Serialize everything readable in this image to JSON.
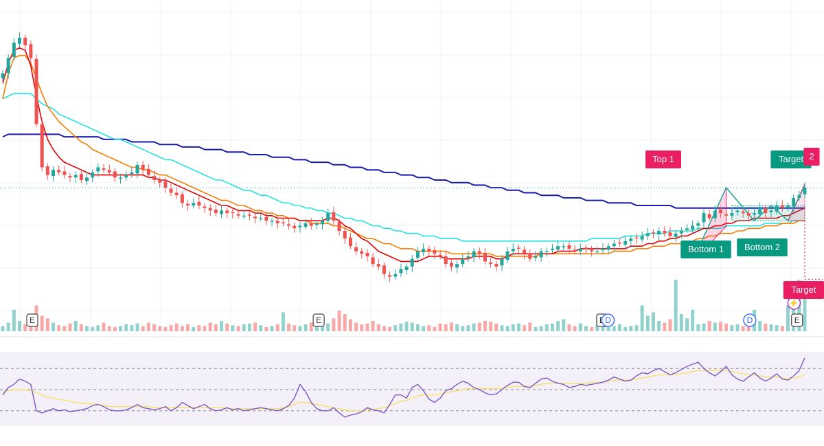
{
  "chart_data": {
    "type": "candlestick",
    "grid": true,
    "colors": {
      "up": "#26a69a",
      "down": "#ef5350",
      "ma_fast": "#e00000",
      "ma_mid": "#f57c00",
      "ma_slow": "#26e0e0",
      "ma_long": "#1a1aa8",
      "rsi": "#7e57c2",
      "rsi_ma": "#f5e16b",
      "label_pink": "#e91e63",
      "label_teal": "#089981"
    },
    "price_range": [
      0,
      100
    ],
    "price_close": [
      82,
      88,
      94,
      96,
      93,
      88,
      62,
      45,
      42,
      44,
      43,
      42,
      41,
      42,
      40,
      41,
      43,
      45,
      44,
      43,
      41,
      41,
      42,
      43,
      46,
      44,
      42,
      40,
      39,
      37,
      35,
      34,
      31,
      30,
      31,
      30,
      29,
      28,
      27,
      28,
      27,
      27,
      26,
      26,
      26,
      25,
      25,
      24,
      24,
      23,
      23,
      22,
      21,
      22,
      23,
      22,
      23,
      24,
      27,
      24,
      20,
      17,
      14,
      12,
      11,
      10,
      7,
      6,
      3,
      2,
      3,
      5,
      6,
      9,
      12,
      13,
      12,
      11,
      10,
      7,
      6,
      7,
      9,
      10,
      12,
      11,
      8,
      7,
      6,
      9,
      12,
      13,
      13,
      11,
      9,
      10,
      12,
      12,
      13,
      14,
      14,
      13,
      12,
      13,
      13,
      12,
      12,
      13,
      14,
      15,
      15,
      16,
      17,
      17,
      18,
      19,
      19,
      20,
      19,
      18,
      19,
      20,
      21,
      22,
      23,
      27,
      25,
      28,
      27,
      26,
      27,
      28,
      27,
      26,
      27,
      29,
      27,
      28,
      30,
      29,
      30,
      33,
      34,
      37
    ],
    "ma_fast": [
      78,
      86,
      91,
      92,
      91,
      85,
      73,
      63,
      56,
      52,
      49,
      47,
      46,
      45,
      44,
      43,
      42,
      42,
      42,
      42,
      42,
      42,
      42,
      42,
      42,
      42,
      41,
      41,
      40,
      40,
      39,
      38,
      37,
      36,
      35,
      34,
      33,
      32,
      31,
      30,
      30,
      29,
      28,
      28,
      28,
      27,
      27,
      26,
      26,
      25,
      25,
      25,
      25,
      24,
      24,
      24,
      24,
      24,
      25,
      25,
      24,
      22,
      21,
      19,
      17,
      16,
      14,
      12,
      11,
      10,
      9,
      8,
      8,
      8,
      8,
      9,
      10,
      10,
      10,
      9,
      9,
      9,
      9,
      9,
      10,
      10,
      10,
      10,
      9,
      9,
      10,
      11,
      11,
      11,
      11,
      11,
      11,
      11,
      11,
      12,
      12,
      12,
      12,
      13,
      13,
      13,
      13,
      13,
      13,
      13,
      13,
      13,
      14,
      14,
      14,
      15,
      15,
      16,
      16,
      17,
      17,
      18,
      18,
      19,
      20,
      21,
      21,
      22,
      22,
      23,
      23,
      24,
      24,
      24,
      25,
      25,
      25,
      25,
      25,
      26,
      26,
      27,
      28,
      29
    ],
    "ma_mid": [
      72,
      82,
      88,
      89,
      89,
      86,
      80,
      74,
      69,
      66,
      63,
      61,
      59,
      57,
      55,
      54,
      52,
      51,
      50,
      49,
      48,
      47,
      46,
      45,
      45,
      44,
      44,
      43,
      42,
      42,
      41,
      40,
      39,
      38,
      37,
      36,
      35,
      34,
      33,
      32,
      32,
      31,
      30,
      30,
      29,
      28,
      28,
      27,
      27,
      26,
      26,
      25,
      25,
      24,
      24,
      23,
      23,
      23,
      23,
      22,
      22,
      21,
      20,
      19,
      18,
      17,
      17,
      16,
      15,
      15,
      14,
      13,
      13,
      13,
      12,
      12,
      12,
      12,
      12,
      12,
      11,
      11,
      11,
      11,
      11,
      11,
      11,
      11,
      10,
      10,
      10,
      10,
      10,
      10,
      10,
      10,
      11,
      11,
      11,
      11,
      11,
      11,
      11,
      11,
      11,
      11,
      11,
      11,
      11,
      12,
      12,
      12,
      12,
      13,
      13,
      13,
      14,
      14,
      14,
      15,
      15,
      15,
      16,
      16,
      17,
      17,
      18,
      18,
      19,
      19,
      19,
      20,
      20,
      21,
      21,
      21,
      22,
      22,
      22,
      23,
      23,
      23,
      24,
      24
    ],
    "ma_slow": [
      72,
      73,
      74,
      74,
      74,
      74,
      72,
      70,
      69,
      68,
      66,
      65,
      64,
      63,
      62,
      61,
      60,
      59,
      58,
      57,
      56,
      56,
      55,
      54,
      53,
      52,
      51,
      50,
      49,
      48,
      48,
      47,
      46,
      45,
      44,
      43,
      42,
      41,
      40,
      40,
      39,
      38,
      37,
      36,
      36,
      35,
      34,
      34,
      33,
      32,
      31,
      31,
      30,
      30,
      29,
      29,
      28,
      28,
      27,
      27,
      26,
      25,
      25,
      24,
      24,
      23,
      22,
      22,
      21,
      21,
      20,
      20,
      19,
      19,
      19,
      18,
      18,
      18,
      17,
      17,
      17,
      17,
      16,
      16,
      16,
      16,
      16,
      16,
      16,
      16,
      16,
      16,
      16,
      16,
      16,
      16,
      16,
      16,
      16,
      16,
      16,
      16,
      16,
      16,
      16,
      17,
      17,
      17,
      17,
      17,
      17,
      18,
      18,
      18,
      18,
      19,
      19,
      19,
      19,
      20,
      20,
      20,
      20,
      20,
      21,
      21,
      21,
      21,
      21,
      22,
      22,
      22,
      22,
      22,
      22,
      22,
      23,
      23,
      23,
      23,
      23,
      24,
      24,
      24
    ],
    "ma_long": [
      57,
      58,
      58,
      58,
      58,
      58,
      58,
      58,
      58,
      58,
      58,
      57,
      57,
      57,
      57,
      57,
      57,
      57,
      56,
      56,
      56,
      56,
      56,
      55,
      55,
      55,
      55,
      55,
      54,
      54,
      54,
      54,
      53,
      53,
      53,
      53,
      52,
      52,
      52,
      52,
      51,
      51,
      51,
      51,
      50,
      50,
      50,
      50,
      49,
      49,
      49,
      49,
      48,
      48,
      48,
      47,
      47,
      47,
      47,
      46,
      46,
      46,
      45,
      45,
      45,
      44,
      44,
      44,
      43,
      43,
      43,
      42,
      42,
      42,
      41,
      41,
      41,
      40,
      40,
      40,
      39,
      39,
      39,
      39,
      38,
      38,
      38,
      37,
      37,
      37,
      36,
      36,
      36,
      35,
      35,
      35,
      34,
      34,
      34,
      34,
      33,
      33,
      33,
      33,
      32,
      32,
      32,
      32,
      31,
      31,
      31,
      31,
      31,
      30,
      30,
      30,
      30,
      30,
      30,
      30,
      29,
      29,
      29,
      29,
      29,
      29,
      29,
      29,
      29,
      29,
      29,
      29,
      29,
      29,
      29,
      29,
      29,
      29,
      29,
      29,
      29,
      29,
      29,
      29
    ],
    "rsi": [
      45,
      52,
      55,
      60,
      58,
      55,
      30,
      28,
      30,
      32,
      30,
      31,
      29,
      30,
      31,
      32,
      35,
      36,
      34,
      31,
      30,
      30,
      31,
      33,
      36,
      33,
      32,
      31,
      32,
      34,
      30,
      33,
      38,
      35,
      32,
      34,
      36,
      32,
      30,
      31,
      33,
      31,
      32,
      30,
      31,
      32,
      33,
      32,
      31,
      30,
      32,
      35,
      42,
      55,
      48,
      38,
      32,
      30,
      30,
      33,
      28,
      24,
      26,
      27,
      29,
      33,
      31,
      30,
      28,
      36,
      45,
      45,
      42,
      52,
      55,
      49,
      41,
      38,
      42,
      49,
      51,
      55,
      58,
      56,
      52,
      50,
      47,
      45,
      46,
      50,
      54,
      57,
      57,
      53,
      52,
      56,
      60,
      61,
      58,
      56,
      55,
      52,
      53,
      55,
      54,
      55,
      56,
      57,
      59,
      62,
      60,
      58,
      59,
      63,
      66,
      65,
      68,
      70,
      67,
      64,
      66,
      69,
      72,
      74,
      76,
      70,
      66,
      63,
      67,
      72,
      64,
      60,
      58,
      62,
      66,
      61,
      58,
      61,
      65,
      60,
      59,
      63,
      68,
      80
    ],
    "rsi_ma": [
      48,
      49,
      50,
      50,
      50,
      49,
      47,
      45,
      43,
      42,
      41,
      40,
      39,
      38,
      37,
      37,
      37,
      36,
      35,
      34,
      34,
      34,
      34,
      34,
      34,
      34,
      34,
      33,
      33,
      33,
      33,
      33,
      33,
      33,
      33,
      33,
      33,
      33,
      33,
      33,
      32,
      32,
      32,
      32,
      32,
      32,
      32,
      32,
      32,
      32,
      33,
      34,
      36,
      38,
      38,
      37,
      36,
      35,
      34,
      33,
      32,
      31,
      30,
      30,
      30,
      31,
      31,
      32,
      33,
      35,
      37,
      39,
      40,
      42,
      44,
      45,
      45,
      45,
      46,
      47,
      48,
      49,
      50,
      51,
      51,
      51,
      51,
      51,
      51,
      51,
      52,
      53,
      53,
      53,
      53,
      54,
      55,
      56,
      56,
      56,
      56,
      56,
      56,
      56,
      56,
      57,
      57,
      57,
      58,
      59,
      59,
      59,
      59,
      60,
      61,
      62,
      63,
      64,
      64,
      64,
      64,
      65,
      66,
      67,
      68,
      68,
      68,
      68,
      68,
      68,
      67,
      66,
      65,
      64,
      64,
      63,
      62,
      62,
      62,
      61,
      60,
      61,
      62,
      64
    ],
    "volume": [
      6,
      10,
      25,
      12,
      8,
      6,
      30,
      18,
      15,
      10,
      7,
      6,
      9,
      12,
      8,
      6,
      5,
      7,
      10,
      6,
      5,
      6,
      8,
      7,
      9,
      6,
      10,
      8,
      6,
      5,
      7,
      9,
      6,
      8,
      5,
      7,
      6,
      10,
      8,
      12,
      9,
      7,
      6,
      8,
      9,
      10,
      7,
      5,
      6,
      8,
      22,
      9,
      7,
      6,
      8,
      10,
      12,
      7,
      9,
      15,
      24,
      20,
      14,
      10,
      8,
      9,
      12,
      8,
      6,
      5,
      7,
      9,
      11,
      10,
      8,
      6,
      7,
      5,
      9,
      8,
      10,
      8,
      6,
      7,
      9,
      10,
      12,
      11,
      9,
      7,
      6,
      8,
      9,
      7,
      10,
      5,
      6,
      8,
      9,
      12,
      14,
      8,
      6,
      9,
      6,
      5,
      7,
      9,
      5,
      6,
      8,
      5,
      6,
      7,
      30,
      18,
      22,
      12,
      10,
      14,
      60,
      20,
      15,
      25,
      8,
      9,
      12,
      10,
      11,
      9,
      7,
      8,
      6,
      10,
      25,
      12,
      9,
      8,
      7,
      6,
      30,
      50,
      60,
      40
    ],
    "rsi_levels": [
      70,
      50,
      30
    ],
    "annotations": [
      {
        "text": "Top 1"
      },
      {
        "text": "Bottom 1"
      },
      {
        "text": "Bottom 2"
      },
      {
        "text": "Target"
      },
      {
        "text": "Target"
      },
      {
        "text": "2"
      }
    ],
    "event_markers": [
      {
        "text": "E",
        "kind": "earnings"
      },
      {
        "text": "E",
        "kind": "earnings"
      },
      {
        "text": "E",
        "kind": "earnings"
      },
      {
        "text": "D",
        "kind": "dividend"
      },
      {
        "text": "D",
        "kind": "dividend"
      },
      {
        "text": "E",
        "kind": "earnings"
      },
      {
        "text": "⚡",
        "kind": "flash"
      }
    ]
  }
}
